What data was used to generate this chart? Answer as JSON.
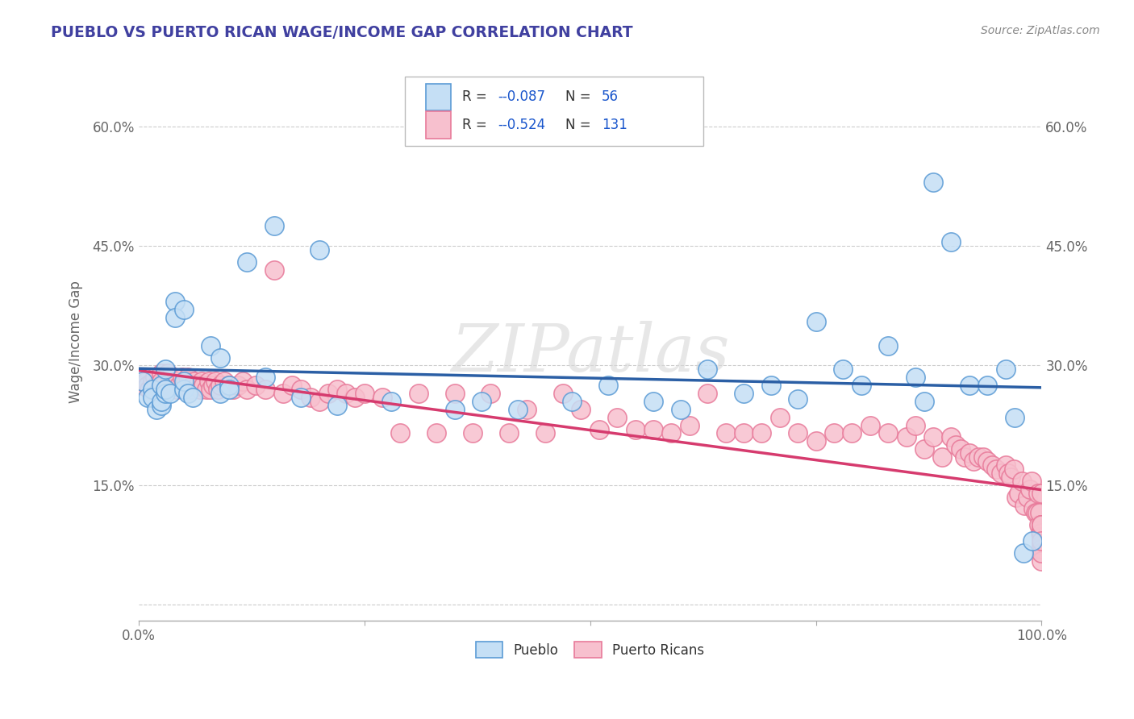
{
  "title": "PUEBLO VS PUERTO RICAN WAGE/INCOME GAP CORRELATION CHART",
  "source": "Source: ZipAtlas.com",
  "ylabel": "Wage/Income Gap",
  "xlim": [
    0.0,
    1.0
  ],
  "ylim": [
    -0.02,
    0.68
  ],
  "x_ticks": [
    0.0,
    0.25,
    0.5,
    0.75,
    1.0
  ],
  "x_tick_labels": [
    "0.0%",
    "",
    "",
    "",
    "100.0%"
  ],
  "y_ticks": [
    0.0,
    0.15,
    0.3,
    0.45,
    0.6
  ],
  "y_tick_labels": [
    "",
    "15.0%",
    "30.0%",
    "45.0%",
    "60.0%"
  ],
  "pueblo_edge_color": "#5b9bd5",
  "pueblo_face_color": "#c5dff5",
  "pr_edge_color": "#e87a9a",
  "pr_face_color": "#f7c0ce",
  "pueblo_line_color": "#2b5fa5",
  "pr_line_color": "#d63b6e",
  "title_color": "#4040a0",
  "axis_color": "#aaaaaa",
  "grid_color": "#cccccc",
  "tick_color": "#666666",
  "source_color": "#888888",
  "watermark_color": "#d8d8d8",
  "watermark": "ZIPatlas",
  "legend_r_pueblo": "-0.087",
  "legend_n_pueblo": "56",
  "legend_r_pr": "-0.524",
  "legend_n_pr": "131",
  "legend_r_color": "#1a56cc",
  "legend_n_color": "#1a56cc",
  "pueblo_scatter_x": [
    0.005,
    0.01,
    0.015,
    0.015,
    0.02,
    0.025,
    0.025,
    0.025,
    0.03,
    0.03,
    0.03,
    0.035,
    0.04,
    0.04,
    0.05,
    0.05,
    0.05,
    0.055,
    0.06,
    0.08,
    0.09,
    0.09,
    0.1,
    0.1,
    0.12,
    0.14,
    0.15,
    0.18,
    0.2,
    0.22,
    0.28,
    0.35,
    0.38,
    0.42,
    0.48,
    0.52,
    0.57,
    0.6,
    0.63,
    0.67,
    0.7,
    0.73,
    0.75,
    0.78,
    0.8,
    0.83,
    0.86,
    0.87,
    0.88,
    0.9,
    0.92,
    0.94,
    0.96,
    0.97,
    0.98,
    0.99
  ],
  "pueblo_scatter_y": [
    0.28,
    0.26,
    0.27,
    0.26,
    0.245,
    0.275,
    0.25,
    0.255,
    0.265,
    0.295,
    0.27,
    0.265,
    0.38,
    0.36,
    0.37,
    0.27,
    0.28,
    0.265,
    0.26,
    0.325,
    0.265,
    0.31,
    0.275,
    0.27,
    0.43,
    0.285,
    0.475,
    0.26,
    0.445,
    0.25,
    0.255,
    0.245,
    0.255,
    0.245,
    0.255,
    0.275,
    0.255,
    0.245,
    0.295,
    0.265,
    0.275,
    0.258,
    0.355,
    0.295,
    0.275,
    0.325,
    0.285,
    0.255,
    0.53,
    0.455,
    0.275,
    0.275,
    0.295,
    0.235,
    0.065,
    0.08
  ],
  "pr_scatter_x": [
    0.005,
    0.008,
    0.01,
    0.012,
    0.015,
    0.018,
    0.02,
    0.022,
    0.025,
    0.025,
    0.028,
    0.03,
    0.032,
    0.035,
    0.038,
    0.04,
    0.042,
    0.045,
    0.048,
    0.05,
    0.052,
    0.055,
    0.058,
    0.06,
    0.062,
    0.065,
    0.068,
    0.07,
    0.072,
    0.075,
    0.078,
    0.08,
    0.082,
    0.085,
    0.088,
    0.09,
    0.095,
    0.1,
    0.105,
    0.11,
    0.115,
    0.12,
    0.13,
    0.14,
    0.15,
    0.16,
    0.17,
    0.18,
    0.19,
    0.2,
    0.21,
    0.22,
    0.23,
    0.24,
    0.25,
    0.27,
    0.29,
    0.31,
    0.33,
    0.35,
    0.37,
    0.39,
    0.41,
    0.43,
    0.45,
    0.47,
    0.49,
    0.51,
    0.53,
    0.55,
    0.57,
    0.59,
    0.61,
    0.63,
    0.65,
    0.67,
    0.69,
    0.71,
    0.73,
    0.75,
    0.77,
    0.79,
    0.81,
    0.83,
    0.85,
    0.86,
    0.87,
    0.88,
    0.89,
    0.9,
    0.905,
    0.91,
    0.915,
    0.92,
    0.925,
    0.93,
    0.935,
    0.94,
    0.945,
    0.95,
    0.955,
    0.96,
    0.963,
    0.966,
    0.969,
    0.972,
    0.975,
    0.978,
    0.981,
    0.984,
    0.987,
    0.989,
    0.991,
    0.993,
    0.995,
    0.996,
    0.997,
    0.998,
    0.999,
    1.0,
    1.0,
    1.0,
    1.0,
    1.0,
    1.0,
    1.0,
    1.0,
    1.0,
    1.0,
    1.0,
    1.0
  ],
  "pr_scatter_y": [
    0.275,
    0.28,
    0.275,
    0.27,
    0.28,
    0.285,
    0.275,
    0.27,
    0.29,
    0.28,
    0.275,
    0.27,
    0.29,
    0.285,
    0.275,
    0.28,
    0.27,
    0.275,
    0.285,
    0.275,
    0.28,
    0.285,
    0.27,
    0.275,
    0.28,
    0.275,
    0.27,
    0.28,
    0.275,
    0.27,
    0.28,
    0.27,
    0.275,
    0.28,
    0.27,
    0.275,
    0.28,
    0.275,
    0.27,
    0.275,
    0.28,
    0.27,
    0.275,
    0.27,
    0.42,
    0.265,
    0.275,
    0.27,
    0.26,
    0.255,
    0.265,
    0.27,
    0.265,
    0.26,
    0.265,
    0.26,
    0.215,
    0.265,
    0.215,
    0.265,
    0.215,
    0.265,
    0.215,
    0.245,
    0.215,
    0.265,
    0.245,
    0.22,
    0.235,
    0.22,
    0.22,
    0.215,
    0.225,
    0.265,
    0.215,
    0.215,
    0.215,
    0.235,
    0.215,
    0.205,
    0.215,
    0.215,
    0.225,
    0.215,
    0.21,
    0.225,
    0.195,
    0.21,
    0.185,
    0.21,
    0.2,
    0.195,
    0.185,
    0.19,
    0.18,
    0.185,
    0.185,
    0.18,
    0.175,
    0.17,
    0.165,
    0.175,
    0.165,
    0.16,
    0.17,
    0.135,
    0.14,
    0.155,
    0.125,
    0.135,
    0.145,
    0.155,
    0.12,
    0.115,
    0.115,
    0.14,
    0.1,
    0.115,
    0.09,
    0.1,
    0.14,
    0.085,
    0.09,
    0.075,
    0.1,
    0.065,
    0.07,
    0.1,
    0.055,
    0.065,
    0.08
  ]
}
